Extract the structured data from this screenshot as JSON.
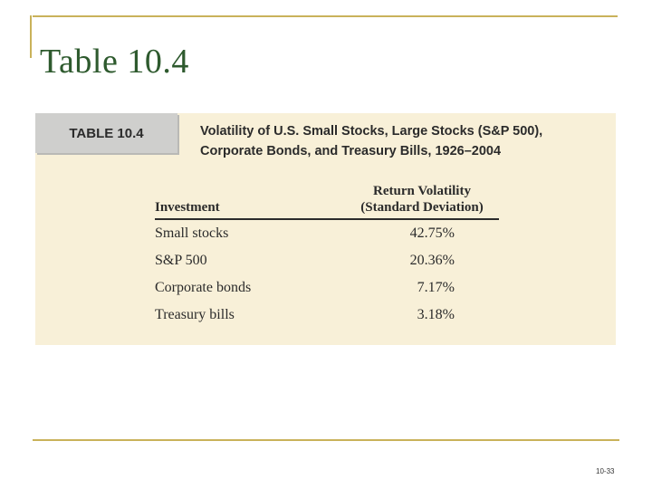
{
  "slide": {
    "title": "Table 10.4",
    "page_number": "10-33"
  },
  "table": {
    "tag": "TABLE 10.4",
    "caption_line1": "Volatility of U.S. Small Stocks, Large Stocks (S&P 500),",
    "caption_line2": "Corporate Bonds, and Treasury Bills, 1926–2004",
    "headers": {
      "investment": "Investment",
      "volatility_line1": "Return Volatility",
      "volatility_line2": "(Standard Deviation)"
    },
    "rows": [
      {
        "investment": "Small stocks",
        "volatility": "42.75%"
      },
      {
        "investment": "S&P 500",
        "volatility": "20.36%"
      },
      {
        "investment": "Corporate bonds",
        "volatility": "7.17%"
      },
      {
        "investment": "Treasury bills",
        "volatility": "3.18%"
      }
    ]
  },
  "colors": {
    "title": "#2e5a2e",
    "frame": "#c9b25a",
    "panel": "#f8f0d8",
    "tag": "#cfcfcd"
  }
}
